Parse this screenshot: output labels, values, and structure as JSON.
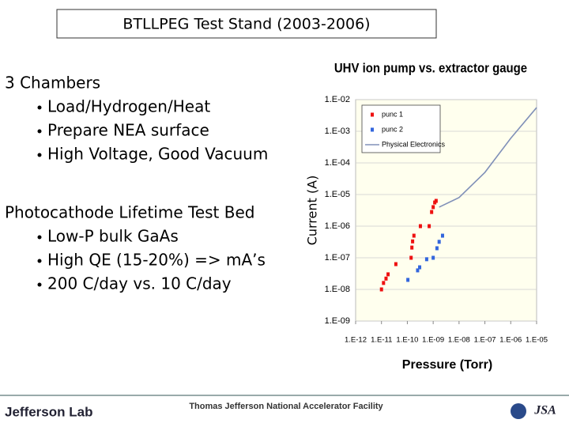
{
  "slide": {
    "title": "BTLLPEG Test Stand (2003-2006)",
    "blocks": [
      {
        "heading": "3 Chambers",
        "items": [
          "Load/Hydrogen/Heat",
          "Prepare NEA surface",
          "High Voltage, Good Vacuum"
        ]
      },
      {
        "heading": "Photocathode Lifetime Test Bed",
        "items": [
          "Low-P bulk GaAs",
          "High QE (15-20%) => mA’s",
          "200 C/day vs. 10 C/day"
        ]
      }
    ],
    "footer": {
      "left": "Jefferson Lab",
      "center": "Thomas Jefferson National Accelerator Facility",
      "right": "JSA"
    }
  },
  "chart_data": {
    "type": "scatter",
    "title": "UHV ion pump vs. extractor gauge",
    "xlabel": "Pressure (Torr)",
    "ylabel": "Current (A)",
    "xscale": "log",
    "yscale": "log",
    "xlim": [
      1e-12,
      1e-05
    ],
    "ylim": [
      1e-09,
      0.01
    ],
    "xticks": [
      {
        "value": 1e-12,
        "label": "1.E-12"
      },
      {
        "value": 1e-11,
        "label": "1.E-11"
      },
      {
        "value": 1e-10,
        "label": "1.E-10"
      },
      {
        "value": 1e-09,
        "label": "1.E-09"
      },
      {
        "value": 1e-08,
        "label": "1.E-08"
      },
      {
        "value": 1e-07,
        "label": "1.E-07"
      },
      {
        "value": 1e-06,
        "label": "1.E-06"
      },
      {
        "value": 1e-05,
        "label": "1.E-05"
      }
    ],
    "yticks": [
      {
        "value": 0.01,
        "label": "1.E-02"
      },
      {
        "value": 0.001,
        "label": "1.E-03"
      },
      {
        "value": 0.0001,
        "label": "1.E-04"
      },
      {
        "value": 1e-05,
        "label": "1.E-05"
      },
      {
        "value": 1e-06,
        "label": "1.E-06"
      },
      {
        "value": 1e-07,
        "label": "1.E-07"
      },
      {
        "value": 1e-08,
        "label": "1.E-08"
      },
      {
        "value": 1e-09,
        "label": "1.E-09"
      }
    ],
    "grid": true,
    "legend": "upper left",
    "series": [
      {
        "name": "punc 1",
        "color": "#ee1111",
        "mode": "markers",
        "x": [
          1e-11,
          1.2e-11,
          1.5e-11,
          1.8e-11,
          3.6e-11,
          1.4e-10,
          1.5e-10,
          1.6e-10,
          1.8e-10,
          3.2e-10,
          7e-10,
          8.7e-10,
          1e-09,
          1.15e-09,
          1.3e-09
        ],
        "values": [
          1e-08,
          1.6e-08,
          2.2e-08,
          3e-08,
          6.3e-08,
          1e-07,
          2.1e-07,
          3.3e-07,
          5e-07,
          1e-06,
          1e-06,
          2.8e-06,
          4e-06,
          5.6e-06,
          6.3e-06
        ]
      },
      {
        "name": "punc 2",
        "color": "#3366dd",
        "mode": "markers",
        "x": [
          1.05e-10,
          2.5e-10,
          3e-10,
          5.6e-10,
          1e-09,
          1.4e-09,
          1.7e-09,
          2.3e-09
        ],
        "values": [
          2e-08,
          4e-08,
          5e-08,
          9e-08,
          1e-07,
          2e-07,
          3.2e-07,
          5e-07
        ]
      },
      {
        "name": "Physical Electronics",
        "color": "#8090b8",
        "mode": "line",
        "x": [
          1.7e-09,
          1e-08,
          1e-07,
          1e-06,
          1e-05
        ],
        "values": [
          4e-06,
          8e-06,
          5e-05,
          0.0006,
          0.0056
        ]
      }
    ]
  }
}
